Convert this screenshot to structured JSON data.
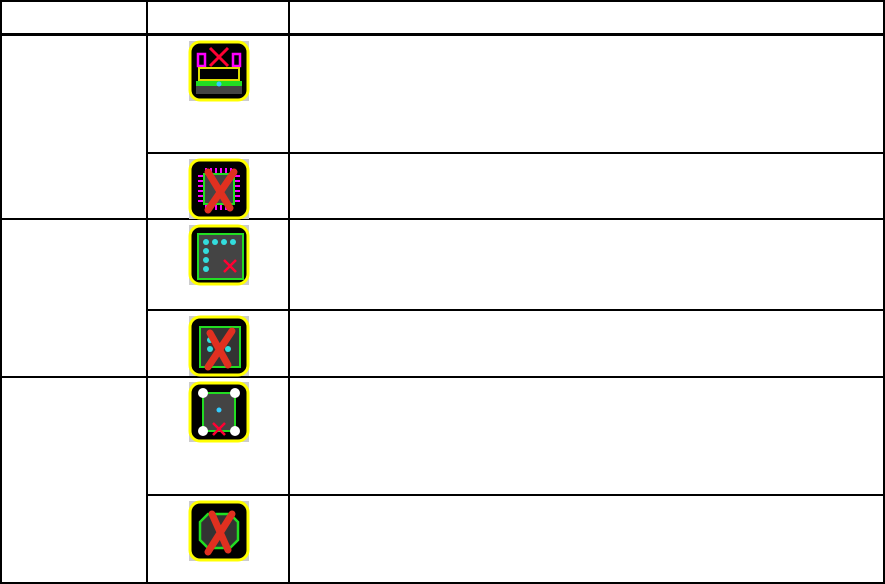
{
  "header": {
    "col1": "",
    "col2": "",
    "col3": ""
  },
  "colors": {
    "frame": "#ffff00",
    "bg": "#000000",
    "green": "#22dd22",
    "magenta": "#ff00ff",
    "cyan": "#33dddd",
    "cross": "#e03020"
  },
  "rows": [
    {
      "group": 1,
      "icon": "pcb-connector-icon",
      "description": ""
    },
    {
      "group": 1,
      "icon": "chip-disabled-icon",
      "description": ""
    },
    {
      "group": 2,
      "icon": "pin-grid-icon",
      "description": ""
    },
    {
      "group": 2,
      "icon": "pin-grid-disabled-icon",
      "description": ""
    },
    {
      "group": 3,
      "icon": "pad-square-icon",
      "description": ""
    },
    {
      "group": 3,
      "icon": "octagon-disabled-icon",
      "description": ""
    }
  ]
}
